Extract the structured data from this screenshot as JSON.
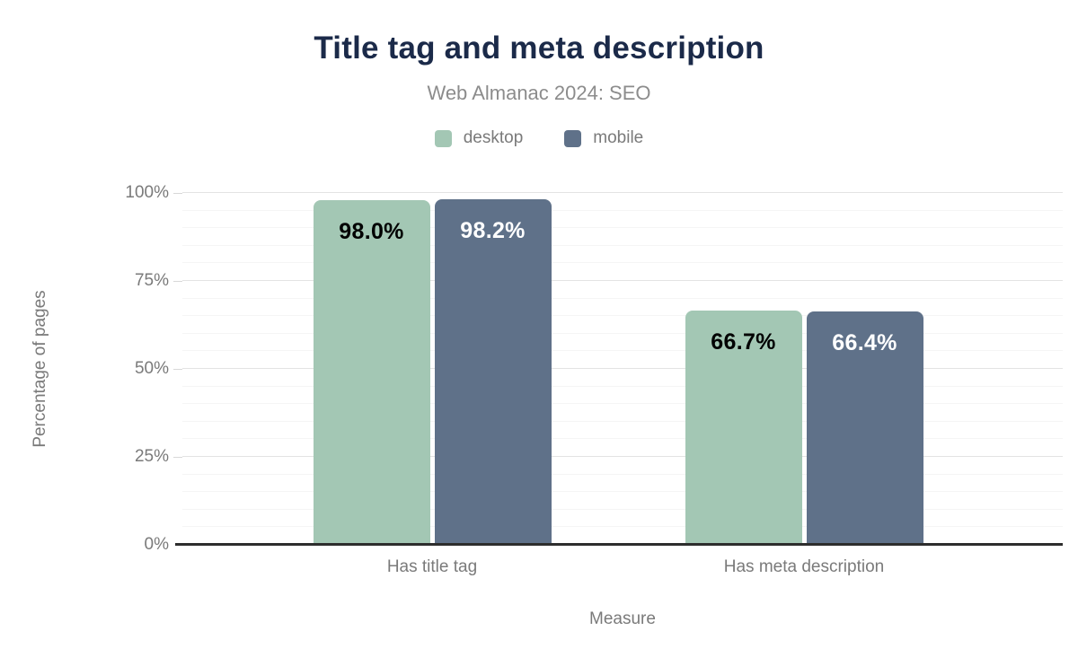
{
  "header": {
    "title": "Title tag and meta description",
    "subtitle": "Web Almanac 2024: SEO"
  },
  "chart_data": {
    "type": "bar",
    "title": "Title tag and meta description",
    "subtitle": "Web Almanac 2024: SEO",
    "categories": [
      "Has title tag",
      "Has meta description"
    ],
    "series": [
      {
        "name": "desktop",
        "color": "#a3c7b4",
        "label_color": "#000000",
        "values": [
          98.0,
          66.7
        ],
        "data_labels": [
          "98.0%",
          "66.7%"
        ]
      },
      {
        "name": "mobile",
        "color": "#5f7189",
        "label_color": "#ffffff",
        "values": [
          98.2,
          66.4
        ],
        "data_labels": [
          "98.2%",
          "66.4%"
        ]
      }
    ],
    "xlabel": "Measure",
    "ylabel": "Percentage of pages",
    "ylim": [
      0,
      100
    ],
    "yticks": [
      {
        "value": 0,
        "label": "0%"
      },
      {
        "value": 25,
        "label": "25%"
      },
      {
        "value": 50,
        "label": "50%"
      },
      {
        "value": 75,
        "label": "75%"
      },
      {
        "value": 100,
        "label": "100%"
      }
    ],
    "grid": {
      "major_step": 25,
      "minor_step": 5
    },
    "legend_position": "top"
  },
  "colors": {
    "title": "#1b2a49",
    "subtitle": "#8c8c8c",
    "axis_text": "#7a7a7a",
    "axis_line": "#2d2d2d",
    "grid_major": "#e3e3e3",
    "grid_minor": "#f5f5f5",
    "tick": "#d8d8d8",
    "background": "#ffffff"
  }
}
